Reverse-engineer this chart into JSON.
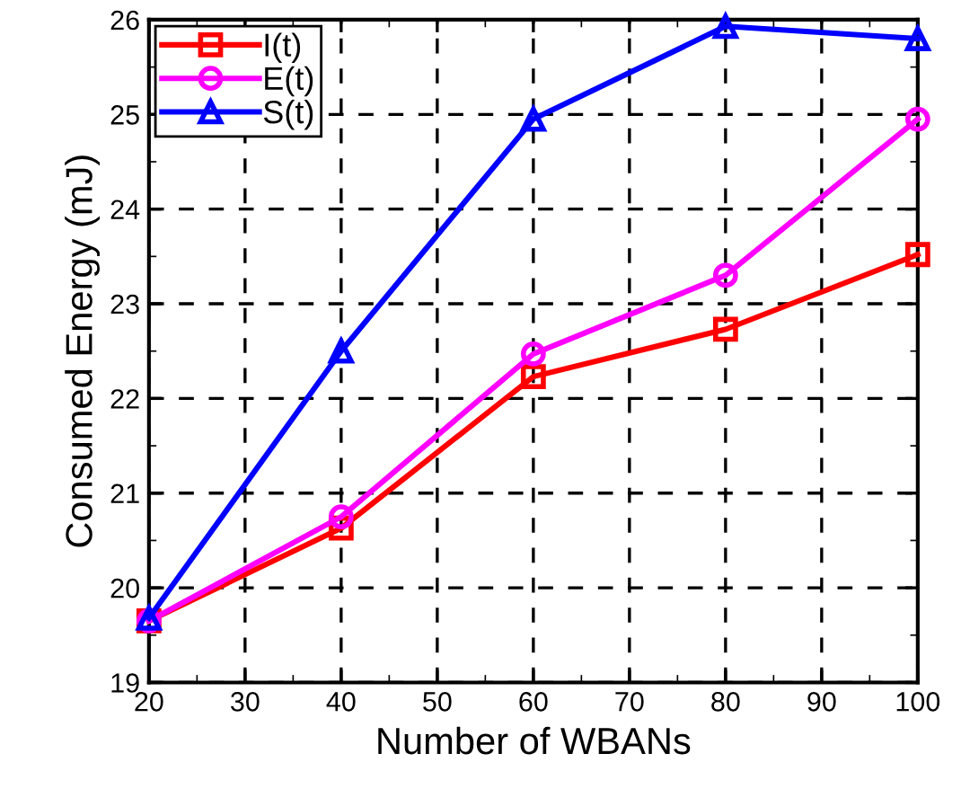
{
  "chart_data": {
    "type": "line",
    "xlabel": "Number of WBANs",
    "ylabel": "Consumed Energy (mJ)",
    "x": [
      20,
      40,
      60,
      80,
      100
    ],
    "series": [
      {
        "name": "I(t)",
        "color": "#ff0000",
        "marker": "square",
        "values": [
          19.65,
          20.63,
          22.23,
          22.73,
          23.52
        ]
      },
      {
        "name": "E(t)",
        "color": "#ff00ff",
        "marker": "circle",
        "values": [
          19.65,
          20.75,
          22.47,
          23.3,
          24.95
        ]
      },
      {
        "name": "S(t)",
        "color": "#0000ff",
        "marker": "triangle",
        "values": [
          19.68,
          22.5,
          24.95,
          25.93,
          25.8
        ]
      }
    ],
    "xlim": [
      20,
      100
    ],
    "xticks": [
      20,
      30,
      40,
      50,
      60,
      70,
      80,
      90,
      100
    ],
    "ylim": [
      19,
      26
    ],
    "yticks": [
      19,
      20,
      21,
      22,
      23,
      24,
      25,
      26
    ],
    "grid": true,
    "legend": "top left",
    "line_style": "solid"
  }
}
